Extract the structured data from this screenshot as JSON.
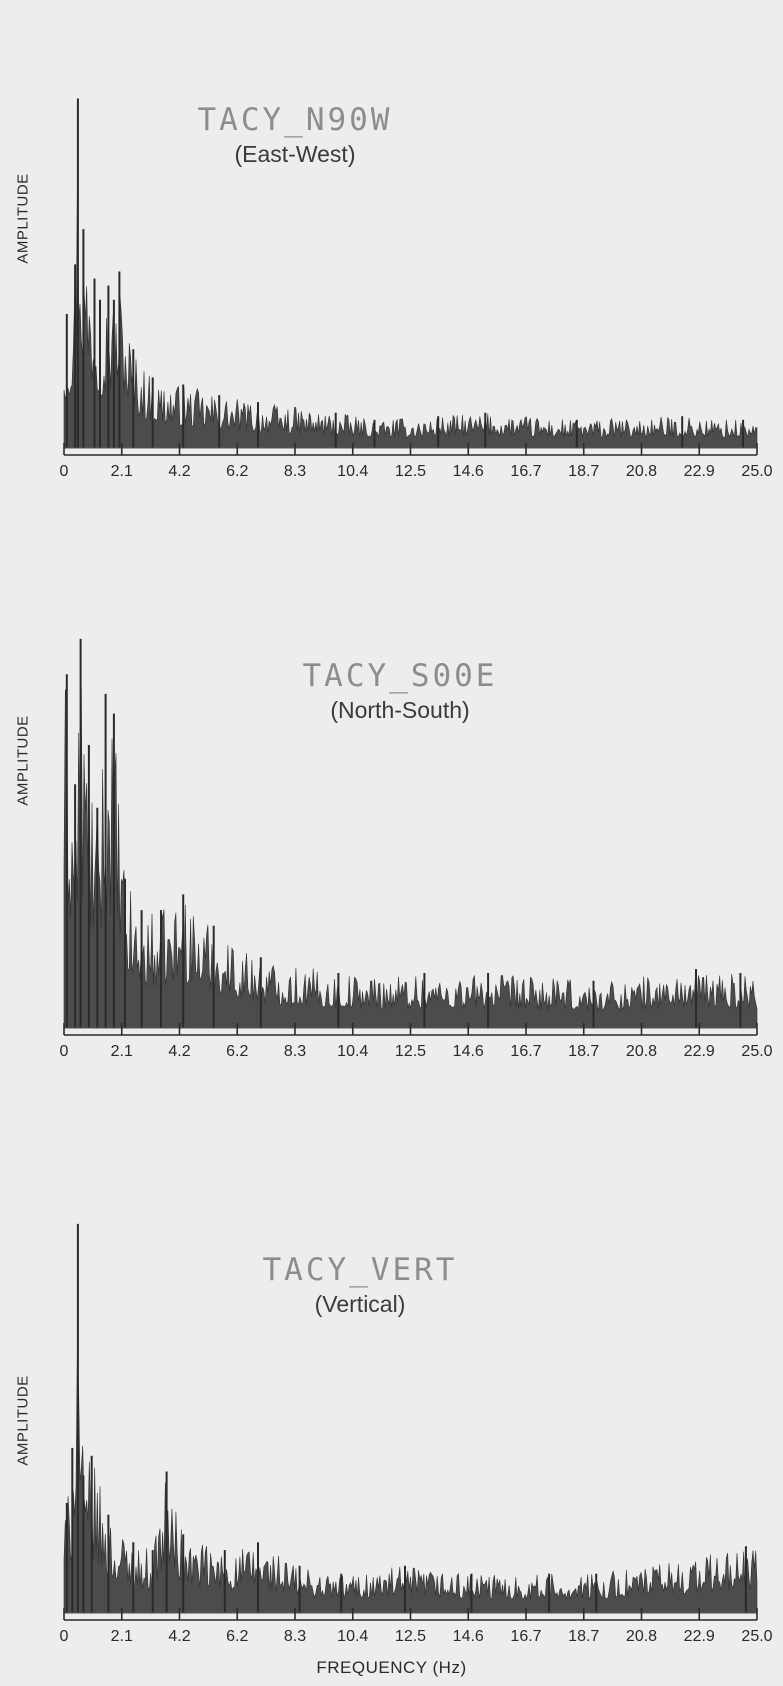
{
  "chart_data": [
    {
      "type": "area",
      "title": "TACY_N90W",
      "subtitle": "(East-West)",
      "ylabel": "AMPLITUDE",
      "xlabel": "",
      "x_ticks": [
        "0",
        "2.1",
        "4.2",
        "6.2",
        "8.3",
        "10.4",
        "12.5",
        "14.6",
        "16.7",
        "18.7",
        "20.8",
        "22.9",
        "25.0"
      ],
      "xlim": [
        0,
        25.0
      ],
      "grid": false,
      "series": [
        {
          "x": [
            0.1,
            0.4,
            0.5,
            0.7,
            1.1,
            1.3,
            1.6,
            1.8,
            2.0,
            2.5,
            3.2,
            4.3,
            5.6,
            7.0,
            9.8,
            11.2,
            13.5,
            15.2,
            18.5,
            22.3,
            24.5
          ],
          "values": [
            0.38,
            0.52,
            0.99,
            0.62,
            0.48,
            0.42,
            0.46,
            0.42,
            0.5,
            0.28,
            0.2,
            0.18,
            0.15,
            0.13,
            0.1,
            0.08,
            0.09,
            0.1,
            0.08,
            0.09,
            0.08
          ]
        }
      ]
    },
    {
      "type": "area",
      "title": "TACY_S00E",
      "subtitle": "(North-South)",
      "ylabel": "AMPLITUDE",
      "xlabel": "",
      "x_ticks": [
        "0",
        "2.1",
        "4.2",
        "6.2",
        "8.3",
        "10.4",
        "12.5",
        "14.6",
        "16.7",
        "18.7",
        "20.8",
        "22.9",
        "25.0"
      ],
      "xlim": [
        0,
        25.0
      ],
      "grid": false,
      "series": [
        {
          "x": [
            0.1,
            0.4,
            0.6,
            0.9,
            1.2,
            1.5,
            1.8,
            2.2,
            2.8,
            3.5,
            4.3,
            5.4,
            7.1,
            9.9,
            13.0,
            15.3,
            19.1,
            22.8,
            24.4
          ],
          "values": [
            0.9,
            0.62,
            0.99,
            0.72,
            0.56,
            0.85,
            0.8,
            0.38,
            0.3,
            0.3,
            0.34,
            0.26,
            0.18,
            0.14,
            0.14,
            0.14,
            0.12,
            0.15,
            0.14
          ]
        }
      ]
    },
    {
      "type": "area",
      "title": "TACY_VERT",
      "subtitle": "(Vertical)",
      "ylabel": "AMPLITUDE",
      "xlabel": "FREQUENCY (Hz)",
      "x_ticks": [
        "0",
        "2.1",
        "4.2",
        "6.2",
        "8.3",
        "10.4",
        "12.5",
        "14.6",
        "16.7",
        "18.7",
        "20.8",
        "22.9",
        "25.0"
      ],
      "xlim": [
        0,
        25.0
      ],
      "grid": false,
      "series": [
        {
          "x": [
            0.1,
            0.3,
            0.5,
            0.7,
            1.0,
            1.6,
            2.5,
            3.2,
            3.7,
            4.3,
            5.8,
            7.0,
            8.5,
            10.0,
            12.3,
            14.7,
            17.5,
            19.2,
            24.6
          ],
          "values": [
            0.28,
            0.42,
            0.99,
            0.35,
            0.4,
            0.25,
            0.18,
            0.16,
            0.36,
            0.2,
            0.16,
            0.18,
            0.12,
            0.1,
            0.12,
            0.1,
            0.1,
            0.1,
            0.17
          ]
        }
      ]
    }
  ]
}
